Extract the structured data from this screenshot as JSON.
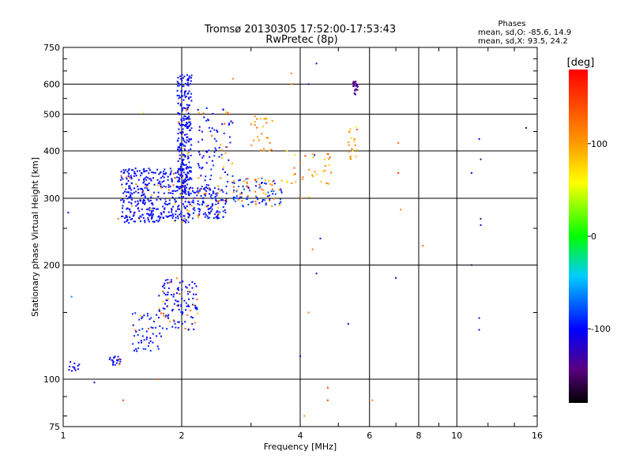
{
  "chart_data": {
    "type": "scatter",
    "title": "Tromsø 20130305 17:52:00-17:53:43",
    "subtitle": "RwPretec (8p)",
    "xlabel": "Frequency [MHz]",
    "ylabel": "Stationary phase Virtual Height [km]",
    "x_scale": "log",
    "y_scale": "log",
    "xlim": [
      1,
      16
    ],
    "ylim": [
      75,
      750
    ],
    "x_ticks": [
      1,
      2,
      4,
      6,
      8,
      10,
      16
    ],
    "x_tick_labels": [
      "1",
      "2",
      "4",
      "6",
      "8",
      "10",
      "16"
    ],
    "y_ticks": [
      75,
      100,
      200,
      300,
      400,
      500,
      600,
      750
    ],
    "y_tick_labels": [
      "75",
      "100",
      "200",
      "300",
      "400",
      "500",
      "600",
      "750"
    ],
    "grid": true,
    "phase_stats": {
      "title": "Phases",
      "line_o": "mean, sd,O: -85.6, 14.9",
      "line_x": "mean, sd,X:  93.5, 24.2"
    },
    "colorbar": {
      "label": "[deg]",
      "range": [
        -180,
        180
      ],
      "ticks": [
        100,
        0,
        -100
      ],
      "tick_labels": [
        "100",
        "0",
        "-100"
      ]
    },
    "clusters": [
      {
        "f": [
          1.4,
          2.1
        ],
        "h": [
          258,
          360
        ],
        "n": 420,
        "phase": [
          -110,
          -90
        ],
        "mix": 0.08
      },
      {
        "f": [
          1.95,
          2.12
        ],
        "h": [
          300,
          640
        ],
        "n": 260,
        "phase": [
          -110,
          -90
        ],
        "mix": 0.05
      },
      {
        "f": [
          2.12,
          2.6
        ],
        "h": [
          265,
          320
        ],
        "n": 140,
        "phase": [
          -110,
          -85
        ],
        "mix": 0.15
      },
      {
        "f": [
          2.2,
          2.7
        ],
        "h": [
          320,
          520
        ],
        "n": 90,
        "phase": [
          -110,
          -85
        ],
        "mix": 0.15
      },
      {
        "f": [
          2.7,
          3.6
        ],
        "h": [
          285,
          340
        ],
        "n": 110,
        "phase": [
          -105,
          -70
        ],
        "mix": 0.45
      },
      {
        "f": [
          3.0,
          3.4
        ],
        "h": [
          400,
          500
        ],
        "n": 25,
        "phase": [
          90,
          130
        ],
        "mix": 0.3
      },
      {
        "f": [
          1.03,
          1.1
        ],
        "h": [
          105,
          112
        ],
        "n": 12,
        "phase": [
          -110,
          -95
        ],
        "mix": 0.0
      },
      {
        "f": [
          1.3,
          1.4
        ],
        "h": [
          108,
          115
        ],
        "n": 22,
        "phase": [
          -110,
          -90
        ],
        "mix": 0.1
      },
      {
        "f": [
          1.5,
          1.8
        ],
        "h": [
          118,
          150
        ],
        "n": 55,
        "phase": [
          -110,
          -85
        ],
        "mix": 0.15
      },
      {
        "f": [
          1.75,
          2.2
        ],
        "h": [
          135,
          185
        ],
        "n": 120,
        "phase": [
          -110,
          -90
        ],
        "mix": 0.15
      },
      {
        "f": [
          5.45,
          5.6
        ],
        "h": [
          560,
          610
        ],
        "n": 30,
        "phase": [
          -150,
          -125
        ],
        "mix": 0.0
      },
      {
        "f": [
          5.3,
          5.6
        ],
        "h": [
          370,
          470
        ],
        "n": 20,
        "phase": [
          60,
          130
        ],
        "mix": 0.4
      },
      {
        "f": [
          3.7,
          4.8
        ],
        "h": [
          300,
          400
        ],
        "n": 35,
        "phase": [
          70,
          130
        ],
        "mix": 0.3
      }
    ],
    "isolated": [
      {
        "f": 1.03,
        "h": 275,
        "phase": -120
      },
      {
        "f": 1.05,
        "h": 165,
        "phase": -60
      },
      {
        "f": 1.2,
        "h": 98,
        "phase": -120
      },
      {
        "f": 1.38,
        "h": 265,
        "phase": 120
      },
      {
        "f": 1.42,
        "h": 88,
        "phase": 150
      },
      {
        "f": 1.6,
        "h": 505,
        "phase": 60
      },
      {
        "f": 1.75,
        "h": 100,
        "phase": 130
      },
      {
        "f": 2.7,
        "h": 620,
        "phase": 110
      },
      {
        "f": 3.35,
        "h": 420,
        "phase": 120
      },
      {
        "f": 3.8,
        "h": 640,
        "phase": 110
      },
      {
        "f": 3.8,
        "h": 600,
        "phase": 110
      },
      {
        "f": 4.4,
        "h": 680,
        "phase": -110
      },
      {
        "f": 4.2,
        "h": 600,
        "phase": -110
      },
      {
        "f": 4.35,
        "h": 390,
        "phase": -110
      },
      {
        "f": 4.5,
        "h": 235,
        "phase": -110
      },
      {
        "f": 4.3,
        "h": 220,
        "phase": 120
      },
      {
        "f": 4.2,
        "h": 150,
        "phase": 110
      },
      {
        "f": 4.4,
        "h": 190,
        "phase": -110
      },
      {
        "f": 4.0,
        "h": 115,
        "phase": -110
      },
      {
        "f": 4.1,
        "h": 80,
        "phase": 110
      },
      {
        "f": 4.7,
        "h": 95,
        "phase": 150
      },
      {
        "f": 4.7,
        "h": 88,
        "phase": 150
      },
      {
        "f": 5.3,
        "h": 140,
        "phase": -110
      },
      {
        "f": 6.1,
        "h": 88,
        "phase": 110
      },
      {
        "f": 7.1,
        "h": 420,
        "phase": 130
      },
      {
        "f": 7.1,
        "h": 350,
        "phase": 160
      },
      {
        "f": 7.2,
        "h": 280,
        "phase": 120
      },
      {
        "f": 7.0,
        "h": 185,
        "phase": -110
      },
      {
        "f": 8.2,
        "h": 225,
        "phase": 120
      },
      {
        "f": 10.9,
        "h": 350,
        "phase": -110
      },
      {
        "f": 11.4,
        "h": 430,
        "phase": -110
      },
      {
        "f": 11.5,
        "h": 380,
        "phase": -150
      },
      {
        "f": 11.5,
        "h": 265,
        "phase": -150
      },
      {
        "f": 11.5,
        "h": 255,
        "phase": -110
      },
      {
        "f": 11.4,
        "h": 145,
        "phase": -110
      },
      {
        "f": 11.4,
        "h": 135,
        "phase": -110
      },
      {
        "f": 10.9,
        "h": 200,
        "phase": -150
      },
      {
        "f": 15.0,
        "h": 460,
        "phase": -150
      }
    ]
  }
}
